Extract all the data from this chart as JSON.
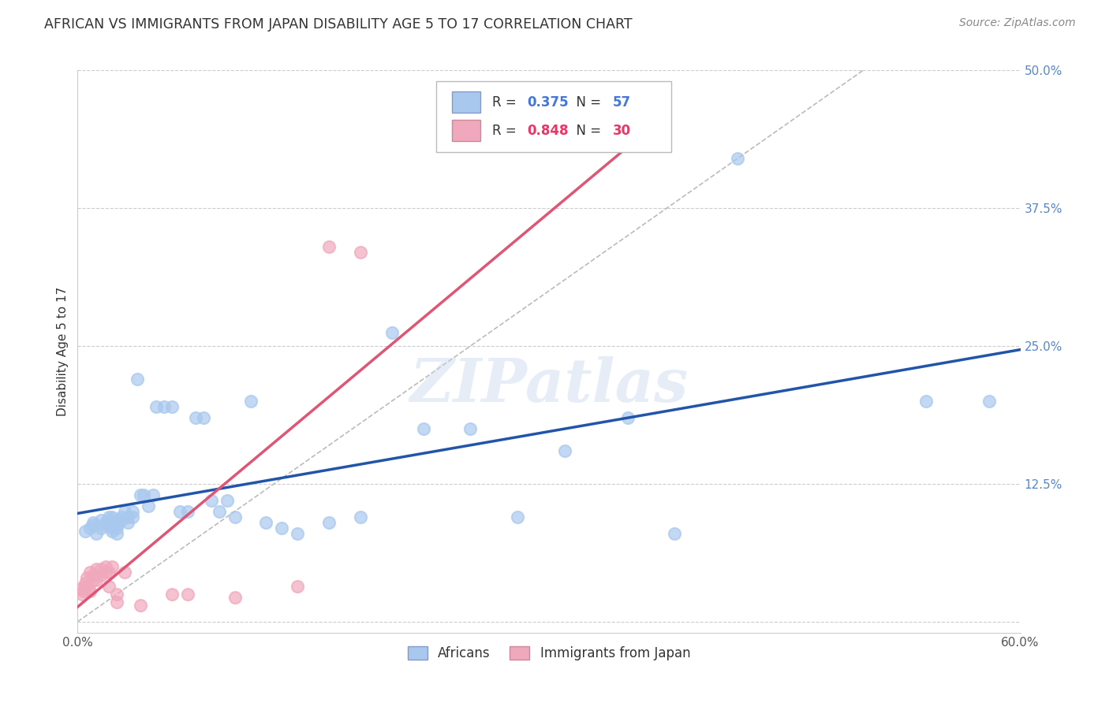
{
  "title": "AFRICAN VS IMMIGRANTS FROM JAPAN DISABILITY AGE 5 TO 17 CORRELATION CHART",
  "source": "Source: ZipAtlas.com",
  "ylabel": "Disability Age 5 to 17",
  "xlim": [
    0.0,
    0.6
  ],
  "ylim": [
    -0.01,
    0.5
  ],
  "xticks": [
    0.0,
    0.1,
    0.2,
    0.3,
    0.4,
    0.5,
    0.6
  ],
  "xticklabels": [
    "0.0%",
    "",
    "",
    "",
    "",
    "",
    "60.0%"
  ],
  "yticks": [
    0.0,
    0.125,
    0.25,
    0.375,
    0.5
  ],
  "yticklabels": [
    "",
    "12.5%",
    "25.0%",
    "37.5%",
    "50.0%"
  ],
  "grid_color": "#cccccc",
  "background_color": "#ffffff",
  "africans_color": "#A8C8EE",
  "japan_color": "#F0A8BC",
  "africans_line_color": "#2255AA",
  "japan_line_color": "#E05575",
  "diagonal_color": "#bbbbbb",
  "africans_R": 0.375,
  "africans_N": 57,
  "japan_R": 0.848,
  "japan_N": 30,
  "legend_africans_label": "Africans",
  "legend_japan_label": "Immigrants from Japan",
  "watermark": "ZIPatlas",
  "africans_x": [
    0.005,
    0.008,
    0.01,
    0.01,
    0.012,
    0.015,
    0.015,
    0.018,
    0.018,
    0.02,
    0.02,
    0.022,
    0.022,
    0.022,
    0.025,
    0.025,
    0.025,
    0.025,
    0.028,
    0.028,
    0.03,
    0.032,
    0.032,
    0.035,
    0.035,
    0.038,
    0.04,
    0.042,
    0.045,
    0.048,
    0.05,
    0.055,
    0.06,
    0.065,
    0.07,
    0.075,
    0.08,
    0.085,
    0.09,
    0.095,
    0.1,
    0.11,
    0.12,
    0.13,
    0.14,
    0.16,
    0.18,
    0.2,
    0.22,
    0.25,
    0.28,
    0.31,
    0.35,
    0.38,
    0.42,
    0.54,
    0.58
  ],
  "africans_y": [
    0.082,
    0.085,
    0.088,
    0.09,
    0.08,
    0.092,
    0.085,
    0.09,
    0.088,
    0.092,
    0.095,
    0.085,
    0.082,
    0.095,
    0.088,
    0.092,
    0.085,
    0.08,
    0.092,
    0.095,
    0.1,
    0.095,
    0.09,
    0.1,
    0.095,
    0.22,
    0.115,
    0.115,
    0.105,
    0.115,
    0.195,
    0.195,
    0.195,
    0.1,
    0.1,
    0.185,
    0.185,
    0.11,
    0.1,
    0.11,
    0.095,
    0.2,
    0.09,
    0.085,
    0.08,
    0.09,
    0.095,
    0.262,
    0.175,
    0.175,
    0.095,
    0.155,
    0.185,
    0.08,
    0.42,
    0.2,
    0.2
  ],
  "japan_x": [
    0.002,
    0.003,
    0.004,
    0.005,
    0.005,
    0.006,
    0.007,
    0.008,
    0.008,
    0.01,
    0.01,
    0.012,
    0.012,
    0.015,
    0.015,
    0.018,
    0.018,
    0.02,
    0.02,
    0.022,
    0.025,
    0.025,
    0.03,
    0.04,
    0.06,
    0.07,
    0.1,
    0.14,
    0.16,
    0.18
  ],
  "japan_y": [
    0.03,
    0.025,
    0.028,
    0.032,
    0.035,
    0.04,
    0.03,
    0.028,
    0.045,
    0.038,
    0.042,
    0.038,
    0.048,
    0.042,
    0.048,
    0.045,
    0.05,
    0.045,
    0.032,
    0.05,
    0.025,
    0.018,
    0.045,
    0.015,
    0.025,
    0.025,
    0.022,
    0.032,
    0.34,
    0.335
  ]
}
